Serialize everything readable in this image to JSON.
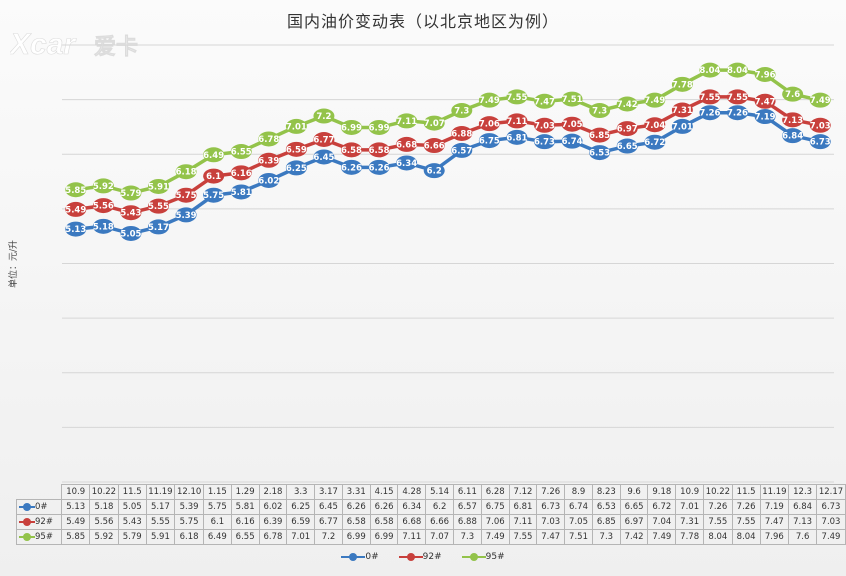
{
  "logo": {
    "brand": "Xcar",
    "cn": "爱卡"
  },
  "chart_data": {
    "type": "line",
    "title": "国内油价变动表（以北京地区为例）",
    "ylabel": "单位：元/升",
    "xlabel": "",
    "ylim": [
      0.5,
      8.5
    ],
    "grid": true,
    "legend_position": "bottom",
    "categories": [
      "10.9",
      "10.22",
      "11.5",
      "11.19",
      "12.10",
      "1.15",
      "1.29",
      "2.18",
      "3.3",
      "3.17",
      "3.31",
      "4.15",
      "4.28",
      "5.14",
      "6.11",
      "6.28",
      "7.12",
      "7.26",
      "8.9",
      "8.23",
      "9.6",
      "9.18",
      "10.9",
      "10.22",
      "11.5",
      "11.19",
      "12.3",
      "12.17"
    ],
    "series": [
      {
        "name": "0#",
        "color": "#3b79c0",
        "values": [
          5.13,
          5.18,
          5.05,
          5.17,
          5.39,
          5.75,
          5.81,
          6.02,
          6.25,
          6.45,
          6.26,
          6.26,
          6.34,
          6.2,
          6.57,
          6.75,
          6.81,
          6.73,
          6.74,
          6.53,
          6.65,
          6.72,
          7.01,
          7.26,
          7.26,
          7.19,
          6.84,
          6.73
        ]
      },
      {
        "name": "92#",
        "color": "#c8403c",
        "values": [
          5.49,
          5.56,
          5.43,
          5.55,
          5.75,
          6.1,
          6.16,
          6.39,
          6.59,
          6.77,
          6.58,
          6.58,
          6.68,
          6.66,
          6.88,
          7.06,
          7.11,
          7.03,
          7.05,
          6.85,
          6.97,
          7.04,
          7.31,
          7.55,
          7.55,
          7.47,
          7.13,
          7.03
        ]
      },
      {
        "name": "95#",
        "color": "#93c34a",
        "values": [
          5.85,
          5.92,
          5.79,
          5.91,
          6.18,
          6.49,
          6.55,
          6.78,
          7.01,
          7.2,
          6.99,
          6.99,
          7.11,
          7.07,
          7.3,
          7.49,
          7.55,
          7.47,
          7.51,
          7.3,
          7.42,
          7.49,
          7.78,
          8.04,
          8.04,
          7.96,
          7.6,
          7.49
        ]
      }
    ]
  }
}
